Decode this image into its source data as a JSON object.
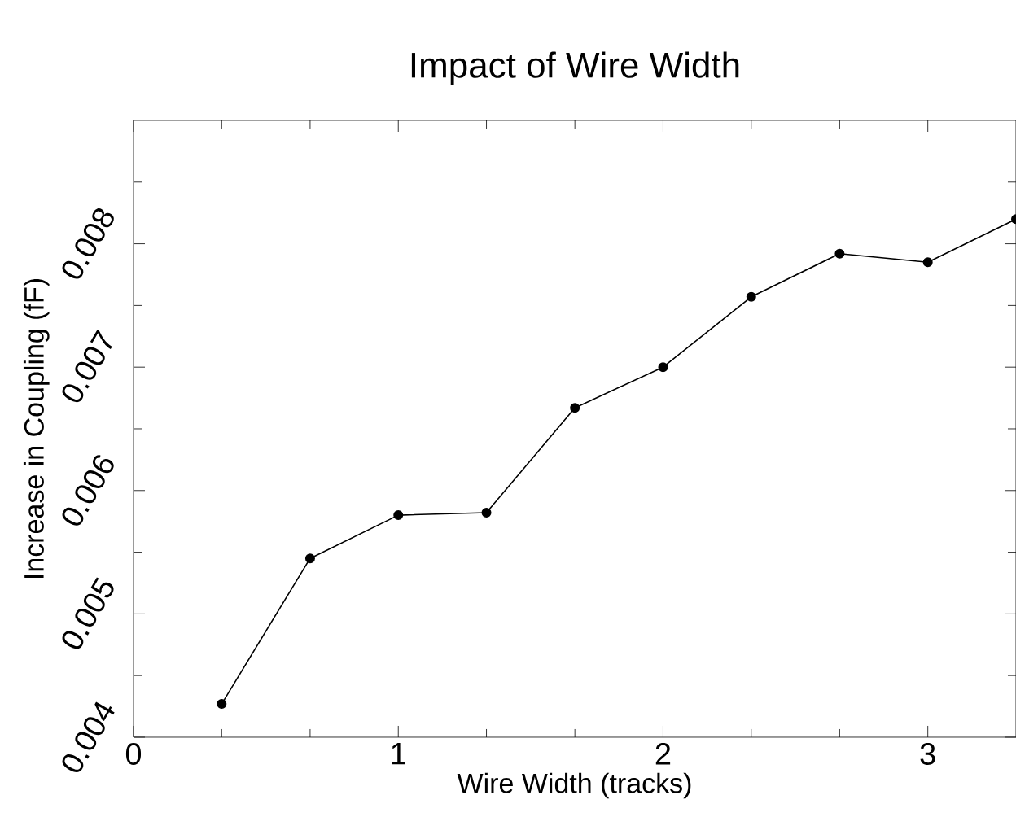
{
  "chart_data": {
    "type": "line",
    "title": "Impact of Wire Width",
    "xlabel": "Wire Width (tracks)",
    "ylabel": "Increase in Coupling (fF)",
    "x": [
      0.333,
      0.667,
      1,
      1.333,
      1.667,
      2,
      2.333,
      2.667,
      3,
      3.333
    ],
    "series": [
      {
        "color": "#000000",
        "values": [
          0.00427,
          0.00545,
          0.0058,
          0.00582,
          0.00667,
          0.007,
          0.00757,
          0.00792,
          0.00785,
          0.0082
        ]
      }
    ],
    "xlim": [
      0,
      3.333
    ],
    "ylim": [
      0.004,
      0.009
    ],
    "xticks": [
      0,
      {
        "value": 0.333,
        "label": null
      },
      {
        "value": 0.667,
        "label": null
      },
      1,
      {
        "value": 1.333,
        "label": null
      },
      {
        "value": 1.667,
        "label": null
      },
      2,
      {
        "value": 2.333,
        "label": null
      },
      {
        "value": 2.667,
        "label": null
      },
      3
    ],
    "yticks": [
      0.004,
      {
        "value": 0.0045,
        "label": null
      },
      0.005,
      {
        "value": 0.0055,
        "label": null
      },
      0.006,
      {
        "value": 0.0065,
        "label": null
      },
      0.007,
      {
        "value": 0.0075,
        "label": null
      },
      0.008,
      {
        "value": 0.0085,
        "label": null
      }
    ],
    "marker": "circle",
    "line_style": "solid"
  }
}
